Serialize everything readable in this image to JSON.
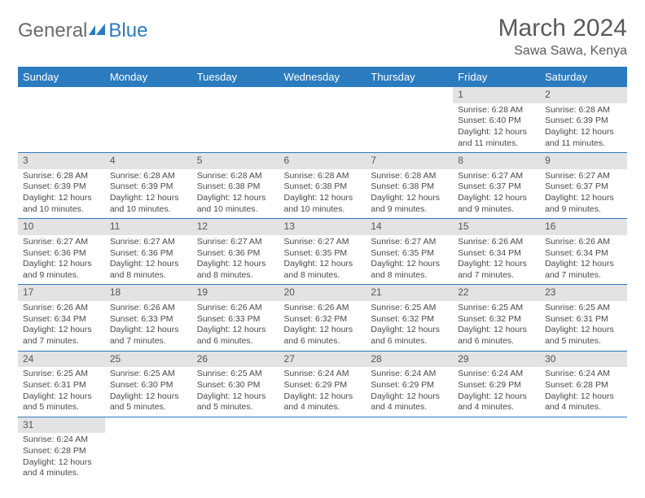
{
  "logo": {
    "part1": "General",
    "part2": "Blue"
  },
  "title": "March 2024",
  "subtitle": "Sawa Sawa, Kenya",
  "colors": {
    "header_bg": "#2b7bbf",
    "header_text": "#ffffff",
    "daynum_bg": "#e3e3e3",
    "border": "#2b7bbf",
    "text": "#4a4a4a"
  },
  "weekdays": [
    "Sunday",
    "Monday",
    "Tuesday",
    "Wednesday",
    "Thursday",
    "Friday",
    "Saturday"
  ],
  "weeks": [
    [
      null,
      null,
      null,
      null,
      null,
      {
        "d": "1",
        "sr": "Sunrise: 6:28 AM",
        "ss": "Sunset: 6:40 PM",
        "dl1": "Daylight: 12 hours",
        "dl2": "and 11 minutes."
      },
      {
        "d": "2",
        "sr": "Sunrise: 6:28 AM",
        "ss": "Sunset: 6:39 PM",
        "dl1": "Daylight: 12 hours",
        "dl2": "and 11 minutes."
      }
    ],
    [
      {
        "d": "3",
        "sr": "Sunrise: 6:28 AM",
        "ss": "Sunset: 6:39 PM",
        "dl1": "Daylight: 12 hours",
        "dl2": "and 10 minutes."
      },
      {
        "d": "4",
        "sr": "Sunrise: 6:28 AM",
        "ss": "Sunset: 6:39 PM",
        "dl1": "Daylight: 12 hours",
        "dl2": "and 10 minutes."
      },
      {
        "d": "5",
        "sr": "Sunrise: 6:28 AM",
        "ss": "Sunset: 6:38 PM",
        "dl1": "Daylight: 12 hours",
        "dl2": "and 10 minutes."
      },
      {
        "d": "6",
        "sr": "Sunrise: 6:28 AM",
        "ss": "Sunset: 6:38 PM",
        "dl1": "Daylight: 12 hours",
        "dl2": "and 10 minutes."
      },
      {
        "d": "7",
        "sr": "Sunrise: 6:28 AM",
        "ss": "Sunset: 6:38 PM",
        "dl1": "Daylight: 12 hours",
        "dl2": "and 9 minutes."
      },
      {
        "d": "8",
        "sr": "Sunrise: 6:27 AM",
        "ss": "Sunset: 6:37 PM",
        "dl1": "Daylight: 12 hours",
        "dl2": "and 9 minutes."
      },
      {
        "d": "9",
        "sr": "Sunrise: 6:27 AM",
        "ss": "Sunset: 6:37 PM",
        "dl1": "Daylight: 12 hours",
        "dl2": "and 9 minutes."
      }
    ],
    [
      {
        "d": "10",
        "sr": "Sunrise: 6:27 AM",
        "ss": "Sunset: 6:36 PM",
        "dl1": "Daylight: 12 hours",
        "dl2": "and 9 minutes."
      },
      {
        "d": "11",
        "sr": "Sunrise: 6:27 AM",
        "ss": "Sunset: 6:36 PM",
        "dl1": "Daylight: 12 hours",
        "dl2": "and 8 minutes."
      },
      {
        "d": "12",
        "sr": "Sunrise: 6:27 AM",
        "ss": "Sunset: 6:36 PM",
        "dl1": "Daylight: 12 hours",
        "dl2": "and 8 minutes."
      },
      {
        "d": "13",
        "sr": "Sunrise: 6:27 AM",
        "ss": "Sunset: 6:35 PM",
        "dl1": "Daylight: 12 hours",
        "dl2": "and 8 minutes."
      },
      {
        "d": "14",
        "sr": "Sunrise: 6:27 AM",
        "ss": "Sunset: 6:35 PM",
        "dl1": "Daylight: 12 hours",
        "dl2": "and 8 minutes."
      },
      {
        "d": "15",
        "sr": "Sunrise: 6:26 AM",
        "ss": "Sunset: 6:34 PM",
        "dl1": "Daylight: 12 hours",
        "dl2": "and 7 minutes."
      },
      {
        "d": "16",
        "sr": "Sunrise: 6:26 AM",
        "ss": "Sunset: 6:34 PM",
        "dl1": "Daylight: 12 hours",
        "dl2": "and 7 minutes."
      }
    ],
    [
      {
        "d": "17",
        "sr": "Sunrise: 6:26 AM",
        "ss": "Sunset: 6:34 PM",
        "dl1": "Daylight: 12 hours",
        "dl2": "and 7 minutes."
      },
      {
        "d": "18",
        "sr": "Sunrise: 6:26 AM",
        "ss": "Sunset: 6:33 PM",
        "dl1": "Daylight: 12 hours",
        "dl2": "and 7 minutes."
      },
      {
        "d": "19",
        "sr": "Sunrise: 6:26 AM",
        "ss": "Sunset: 6:33 PM",
        "dl1": "Daylight: 12 hours",
        "dl2": "and 6 minutes."
      },
      {
        "d": "20",
        "sr": "Sunrise: 6:26 AM",
        "ss": "Sunset: 6:32 PM",
        "dl1": "Daylight: 12 hours",
        "dl2": "and 6 minutes."
      },
      {
        "d": "21",
        "sr": "Sunrise: 6:25 AM",
        "ss": "Sunset: 6:32 PM",
        "dl1": "Daylight: 12 hours",
        "dl2": "and 6 minutes."
      },
      {
        "d": "22",
        "sr": "Sunrise: 6:25 AM",
        "ss": "Sunset: 6:32 PM",
        "dl1": "Daylight: 12 hours",
        "dl2": "and 6 minutes."
      },
      {
        "d": "23",
        "sr": "Sunrise: 6:25 AM",
        "ss": "Sunset: 6:31 PM",
        "dl1": "Daylight: 12 hours",
        "dl2": "and 5 minutes."
      }
    ],
    [
      {
        "d": "24",
        "sr": "Sunrise: 6:25 AM",
        "ss": "Sunset: 6:31 PM",
        "dl1": "Daylight: 12 hours",
        "dl2": "and 5 minutes."
      },
      {
        "d": "25",
        "sr": "Sunrise: 6:25 AM",
        "ss": "Sunset: 6:30 PM",
        "dl1": "Daylight: 12 hours",
        "dl2": "and 5 minutes."
      },
      {
        "d": "26",
        "sr": "Sunrise: 6:25 AM",
        "ss": "Sunset: 6:30 PM",
        "dl1": "Daylight: 12 hours",
        "dl2": "and 5 minutes."
      },
      {
        "d": "27",
        "sr": "Sunrise: 6:24 AM",
        "ss": "Sunset: 6:29 PM",
        "dl1": "Daylight: 12 hours",
        "dl2": "and 4 minutes."
      },
      {
        "d": "28",
        "sr": "Sunrise: 6:24 AM",
        "ss": "Sunset: 6:29 PM",
        "dl1": "Daylight: 12 hours",
        "dl2": "and 4 minutes."
      },
      {
        "d": "29",
        "sr": "Sunrise: 6:24 AM",
        "ss": "Sunset: 6:29 PM",
        "dl1": "Daylight: 12 hours",
        "dl2": "and 4 minutes."
      },
      {
        "d": "30",
        "sr": "Sunrise: 6:24 AM",
        "ss": "Sunset: 6:28 PM",
        "dl1": "Daylight: 12 hours",
        "dl2": "and 4 minutes."
      }
    ],
    [
      {
        "d": "31",
        "sr": "Sunrise: 6:24 AM",
        "ss": "Sunset: 6:28 PM",
        "dl1": "Daylight: 12 hours",
        "dl2": "and 4 minutes."
      },
      null,
      null,
      null,
      null,
      null,
      null
    ]
  ]
}
